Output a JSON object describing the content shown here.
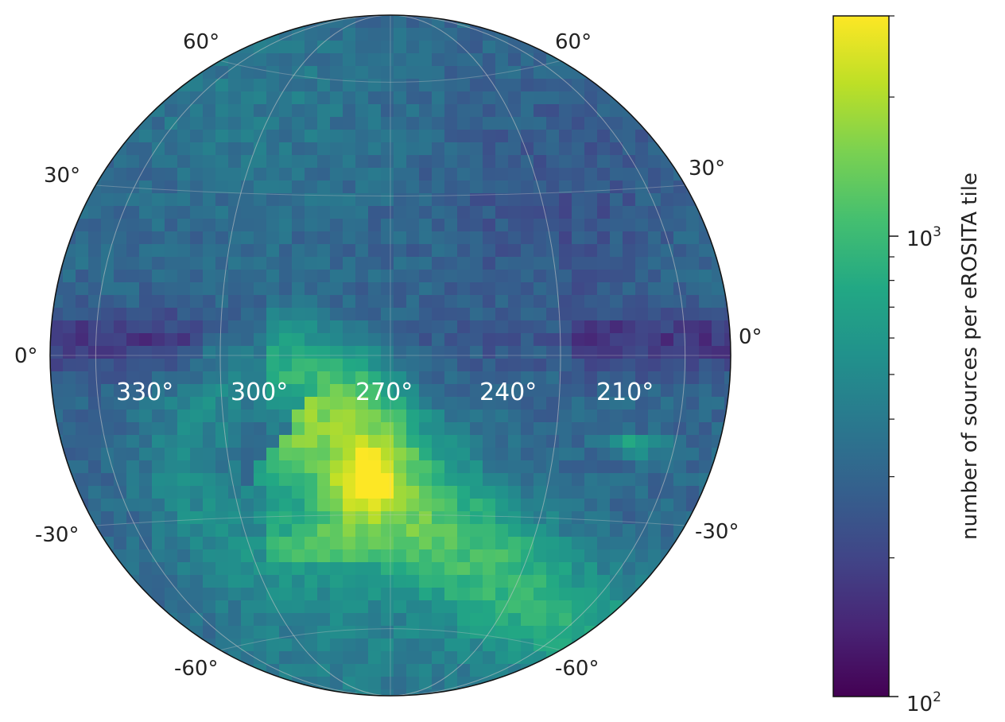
{
  "chart_data": {
    "type": "heatmap",
    "projection": "orthographic",
    "title": "",
    "colormap": "viridis",
    "color_scale": "log",
    "colorbar": {
      "label": "number of sources per eROSITA tile",
      "range": [
        100,
        3000
      ],
      "ticks": [
        {
          "base": "10",
          "exp": "2",
          "value": 100
        },
        {
          "base": "10",
          "exp": "3",
          "value": 1000
        }
      ]
    },
    "latitude_labels": {
      "left": [
        "60°",
        "30°",
        "0°",
        "-30°",
        "-60°"
      ],
      "right": [
        "60°",
        "30°",
        "0°",
        "-30°",
        "-60°"
      ]
    },
    "longitude_labels": [
      "330°",
      "300°",
      "270°",
      "240°",
      "210°"
    ],
    "grid": true,
    "map_grid": {
      "lon_edges": [
        315,
        345
      ],
      "lat_edges": [
        -90,
        90
      ],
      "note_values": "approximate source counts per tile read from colour",
      "features": [
        {
          "kind": "background",
          "value": 300
        },
        {
          "kind": "peak",
          "lon": 270,
          "lat": -25,
          "value": 2800
        },
        {
          "kind": "ridge",
          "value": 1400
        },
        {
          "kind": "low_band",
          "lat": 0,
          "value": 150
        }
      ]
    }
  }
}
